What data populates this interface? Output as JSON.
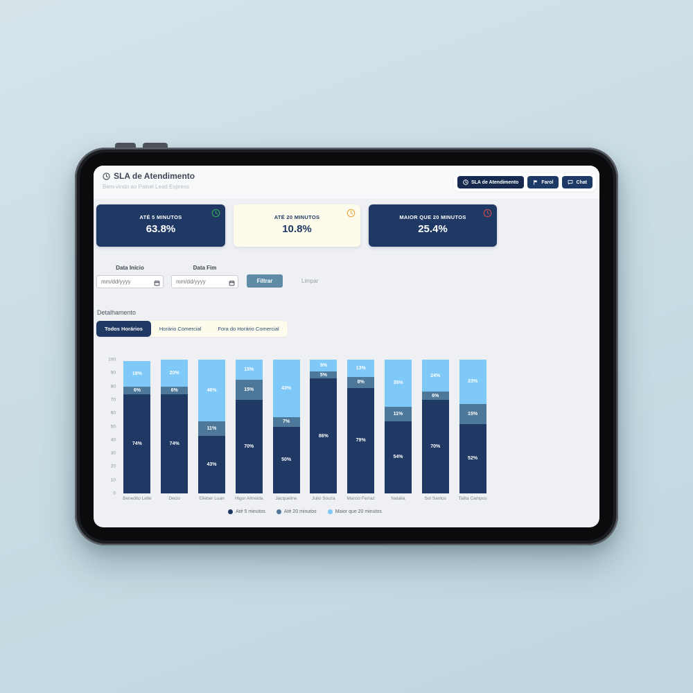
{
  "header": {
    "title": "SLA de Atendimento",
    "subtitle": "Bem-vindo ao Painel Lead Express",
    "nav_buttons": [
      {
        "label": "SLA de Atendimento",
        "icon": "clock-icon"
      },
      {
        "label": "Farol",
        "icon": "flag-icon"
      },
      {
        "label": "Chat",
        "icon": "chat-icon"
      }
    ]
  },
  "kpis": [
    {
      "label": "ATÉ 5 MINUTOS",
      "value": "63.8%",
      "variant": "navy",
      "icon": "clock-icon",
      "icon_color": "#35a853"
    },
    {
      "label": "ATÉ 20 MINUTOS",
      "value": "10.8%",
      "variant": "cream",
      "icon": "clock-icon",
      "icon_color": "#e9a83b"
    },
    {
      "label": "MAIOR QUE 20 MINUTOS",
      "value": "25.4%",
      "variant": "navy",
      "icon": "clock-icon",
      "icon_color": "#cc4b4b"
    }
  ],
  "filters": {
    "start_label": "Data Início",
    "end_label": "Data Fim",
    "date_placeholder": "mm/dd/yyyy",
    "filter_button": "Filtrar",
    "clear_button": "Limpar"
  },
  "detail": {
    "label": "Detalhamento",
    "tabs": [
      {
        "label": "Todos Horários",
        "active": true
      },
      {
        "label": "Horário Comercial",
        "active": false
      },
      {
        "label": "Fora do Horário Comercial",
        "active": false
      }
    ]
  },
  "chart_data": {
    "type": "bar",
    "stacked": true,
    "categories": [
      "Benedito Leite",
      "Decio",
      "Elieber Luan",
      "Higor Almeida",
      "Jacqueline",
      "Julio Souza",
      "Marcio Ferraz",
      "Natalia",
      "Sol Santos",
      "Talita Campos"
    ],
    "series": [
      {
        "name": "Até 5 minutos",
        "color": "#1f3864",
        "values": [
          74,
          74,
          43,
          70,
          50,
          86,
          79,
          54,
          70,
          52
        ]
      },
      {
        "name": "Até 20 minutos",
        "color": "#4e7899",
        "values": [
          6,
          6,
          11,
          15,
          7,
          5,
          8,
          11,
          6,
          15
        ]
      },
      {
        "name": "Maior que 20 minutos",
        "color": "#7fc9f8",
        "values": [
          19,
          20,
          46,
          15,
          43,
          9,
          13,
          35,
          24,
          33
        ]
      }
    ],
    "value_suffix": "%",
    "ylim": [
      0,
      100
    ],
    "yticks": [
      0,
      10,
      20,
      30,
      40,
      50,
      60,
      70,
      80,
      90,
      100
    ],
    "grid": false,
    "legend_position": "bottom"
  },
  "colors": {
    "navy": "#1f3864",
    "cream": "#fdfbec",
    "steel_button": "#5f8ba6",
    "light_blue_bar": "#7fc9f8",
    "steel_bar": "#4e7899",
    "screen_bg": "#eef0f3",
    "page_bg": "#cadde5"
  }
}
